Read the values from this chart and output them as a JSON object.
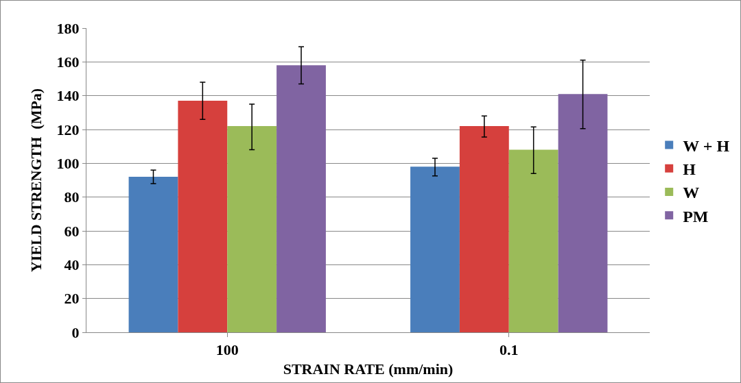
{
  "chart_data": {
    "type": "bar",
    "xlabel": "STRAIN RATE (mm/min)",
    "ylabel": "YIELD STRENGTH  (MPa)",
    "categories": [
      "100",
      "0.1"
    ],
    "series": [
      {
        "name": "W + H",
        "color": "#4a7ebb",
        "values": [
          92,
          98
        ],
        "errors": [
          [
            88,
            96
          ],
          [
            92.5,
            103
          ]
        ]
      },
      {
        "name": "H",
        "color": "#d6403d",
        "values": [
          137,
          122
        ],
        "errors": [
          [
            126,
            148
          ],
          [
            115.5,
            128
          ]
        ]
      },
      {
        "name": "W",
        "color": "#9bbb59",
        "values": [
          122,
          108
        ],
        "errors": [
          [
            108,
            135
          ],
          [
            94,
            121.5
          ]
        ]
      },
      {
        "name": "PM",
        "color": "#8064a2",
        "values": [
          158,
          141
        ],
        "errors": [
          [
            147,
            169
          ],
          [
            120.5,
            161
          ]
        ]
      }
    ],
    "ylim": [
      0,
      180
    ],
    "yticks": [
      0,
      20,
      40,
      60,
      80,
      100,
      120,
      140,
      160,
      180
    ],
    "grid": "y",
    "legend": "right"
  }
}
